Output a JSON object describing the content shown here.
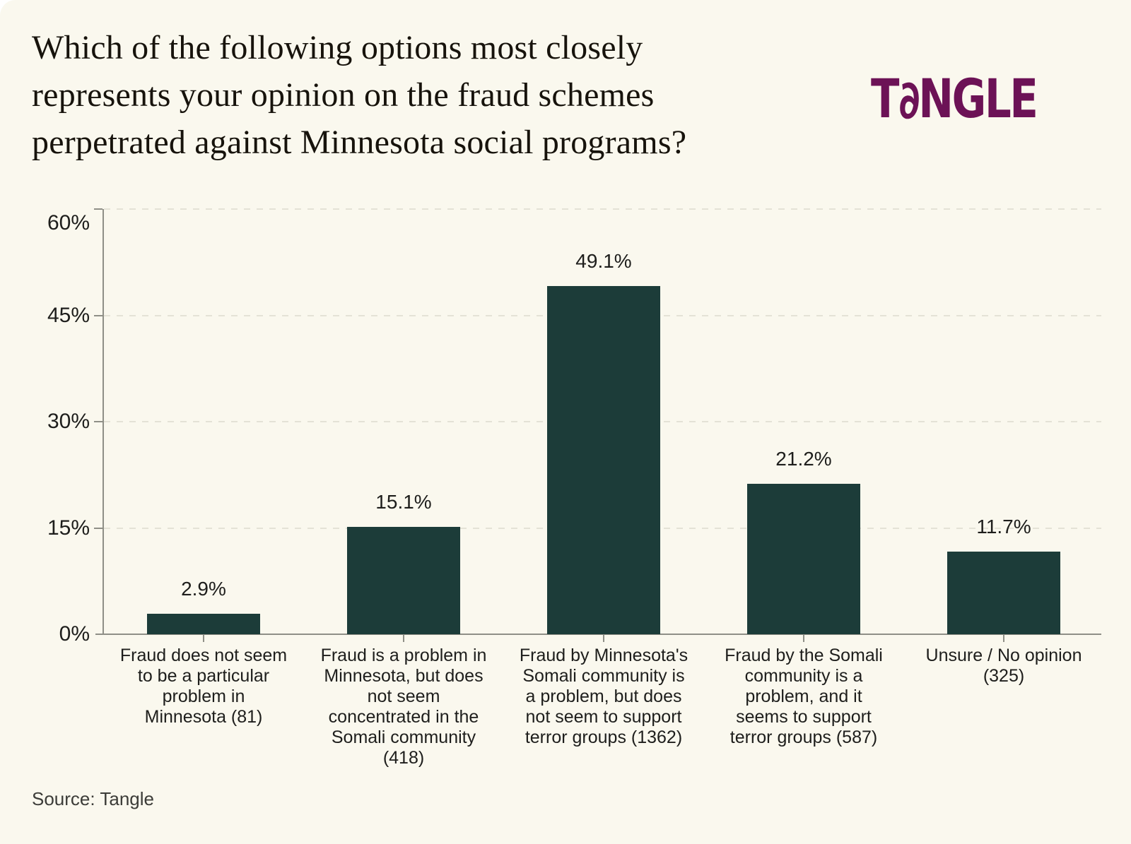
{
  "header": {
    "title_lines": [
      "Which of the following options most closely",
      "represents your opinion on the fraud schemes",
      "perpetrated against Minnesota social programs?"
    ],
    "logo_text": "TANGLE"
  },
  "chart_data": {
    "type": "bar",
    "title": "Which of the following options most closely represents your opinion on the fraud schemes perpetrated against Minnesota social programs?",
    "categories": [
      "Fraud does not seem to be a particular problem in Minnesota (81)",
      "Fraud is a problem in Minnesota, but does not seem concentrated in the Somali community (418)",
      "Fraud by Minnesota's Somali community is a problem, but does not seem to support terror groups (1362)",
      "Fraud by the Somali community is a problem, and it seems to support terror groups (587)",
      "Unsure / No opinion (325)"
    ],
    "category_label_lines": [
      [
        "Fraud does not seem",
        "to be a particular",
        "problem in",
        "Minnesota (81)"
      ],
      [
        "Fraud is a problem in",
        "Minnesota, but does",
        "not seem",
        "concentrated in the",
        "Somali community",
        "(418)"
      ],
      [
        "Fraud by Minnesota's",
        "Somali community is",
        "a problem, but does",
        "not seem to support",
        "terror groups (1362)"
      ],
      [
        "Fraud by the Somali",
        "community is a",
        "problem, and it",
        "seems to support",
        "terror groups (587)"
      ],
      [
        "Unsure / No opinion",
        "(325)"
      ]
    ],
    "values": [
      2.9,
      15.1,
      49.1,
      21.2,
      11.7
    ],
    "value_labels": [
      "2.9%",
      "15.1%",
      "49.1%",
      "21.2%",
      "11.7%"
    ],
    "response_counts": [
      81,
      418,
      1362,
      587,
      325
    ],
    "xlabel": "",
    "ylabel": "",
    "ylim": [
      0,
      60
    ],
    "ytick_values": [
      0,
      15,
      30,
      45,
      60
    ],
    "ytick_labels": [
      "0%",
      "15%",
      "30%",
      "45%",
      "60%"
    ],
    "grid": "horizontal-dashed",
    "legend": "none",
    "bar_color": "#1c3c39"
  },
  "footer": {
    "source": "Source: Tangle"
  },
  "colors": {
    "background": "#faf8ee",
    "bar": "#1c3c39",
    "logo": "#6c1256",
    "axis": "#8f8f87",
    "grid": "#e4e2d6",
    "text": "#1e1e1c",
    "title": "#17130c"
  }
}
